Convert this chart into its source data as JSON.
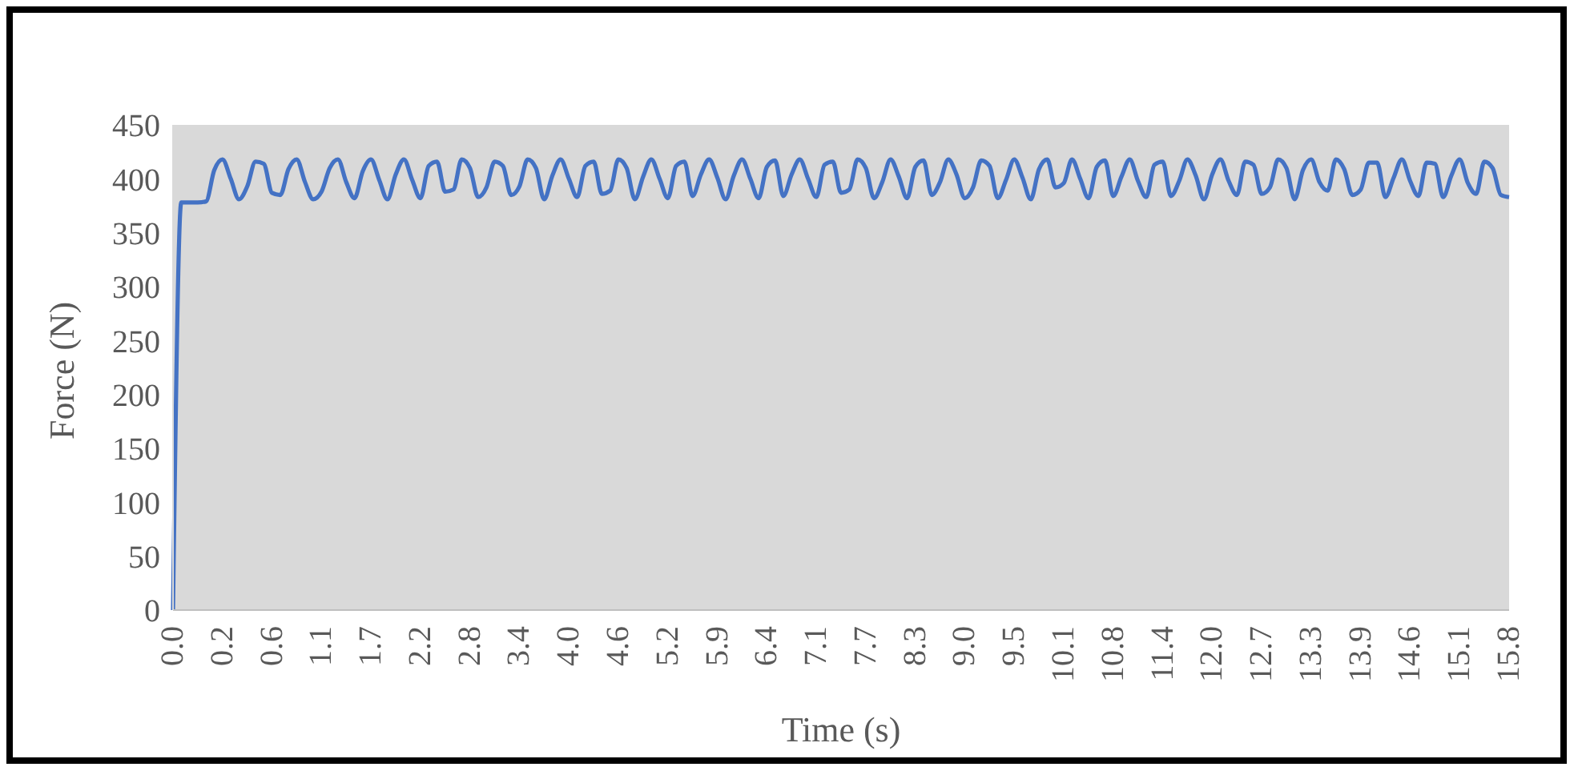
{
  "chart_data": {
    "type": "line",
    "xlabel": "Time (s)",
    "ylabel": "Force (N)",
    "categories": [
      "0.0",
      null,
      null,
      null,
      null,
      null,
      "0.2",
      null,
      null,
      null,
      null,
      null,
      "0.6",
      null,
      null,
      null,
      null,
      null,
      "1.1",
      null,
      null,
      null,
      null,
      null,
      "1.7",
      null,
      null,
      null,
      null,
      null,
      "2.2",
      null,
      null,
      null,
      null,
      null,
      "2.8",
      null,
      null,
      null,
      null,
      null,
      "3.4",
      null,
      null,
      null,
      null,
      null,
      "4.0",
      null,
      null,
      null,
      null,
      null,
      "4.6",
      null,
      null,
      null,
      null,
      null,
      "5.2",
      null,
      null,
      null,
      null,
      null,
      "5.9",
      null,
      null,
      null,
      null,
      null,
      "6.4",
      null,
      null,
      null,
      null,
      null,
      "7.1",
      null,
      null,
      null,
      null,
      null,
      "7.7",
      null,
      null,
      null,
      null,
      null,
      "8.3",
      null,
      null,
      null,
      null,
      null,
      "9.0",
      null,
      null,
      null,
      null,
      null,
      "9.5",
      null,
      null,
      null,
      null,
      null,
      "10.1",
      null,
      null,
      null,
      null,
      null,
      "10.8",
      null,
      null,
      null,
      null,
      null,
      "11.4",
      null,
      null,
      null,
      null,
      null,
      "12.0",
      null,
      null,
      null,
      null,
      null,
      "12.7",
      null,
      null,
      null,
      null,
      null,
      "13.3",
      null,
      null,
      null,
      null,
      null,
      "13.9",
      null,
      null,
      null,
      null,
      null,
      "14.6",
      null,
      null,
      null,
      null,
      null,
      "15.1",
      null,
      null,
      null,
      null,
      null,
      "15.8"
    ],
    "series": [
      {
        "color": "#4472c4",
        "values": [
          0,
          378,
          378,
          378,
          379,
          408,
          418,
          400,
          381,
          393,
          416,
          414,
          387,
          385,
          409,
          418,
          397,
          381,
          388,
          410,
          418,
          397,
          382,
          407,
          418,
          399,
          381,
          404,
          418,
          399,
          382,
          412,
          416,
          388,
          390,
          418,
          410,
          383,
          392,
          416,
          412,
          385,
          393,
          418,
          410,
          381,
          403,
          418,
          400,
          383,
          412,
          416,
          386,
          389,
          418,
          410,
          381,
          402,
          418,
          400,
          382,
          412,
          416,
          384,
          404,
          418,
          401,
          381,
          403,
          418,
          400,
          382,
          411,
          417,
          384,
          404,
          418,
          400,
          383,
          413,
          416,
          387,
          390,
          418,
          410,
          382,
          397,
          418,
          402,
          382,
          411,
          417,
          385,
          397,
          418,
          404,
          382,
          392,
          417,
          412,
          382,
          399,
          418,
          401,
          381,
          409,
          418,
          392,
          396,
          418,
          400,
          382,
          411,
          417,
          384,
          402,
          418,
          398,
          383,
          413,
          416,
          384,
          398,
          418,
          403,
          381,
          404,
          418,
          398,
          385,
          416,
          413,
          386,
          392,
          418,
          410,
          381,
          408,
          418,
          397,
          389,
          418,
          409,
          385,
          390,
          415,
          415,
          383,
          401,
          418,
          398,
          384,
          415,
          414,
          383,
          403,
          418,
          396,
          386,
          416,
          410,
          385,
          383
        ]
      }
    ],
    "ylim": [
      0,
      450
    ],
    "yticks": [
      0,
      50,
      100,
      150,
      200,
      250,
      300,
      350,
      400,
      450
    ],
    "grid": false,
    "legend": false,
    "marker": "none",
    "line_style": "solid"
  }
}
